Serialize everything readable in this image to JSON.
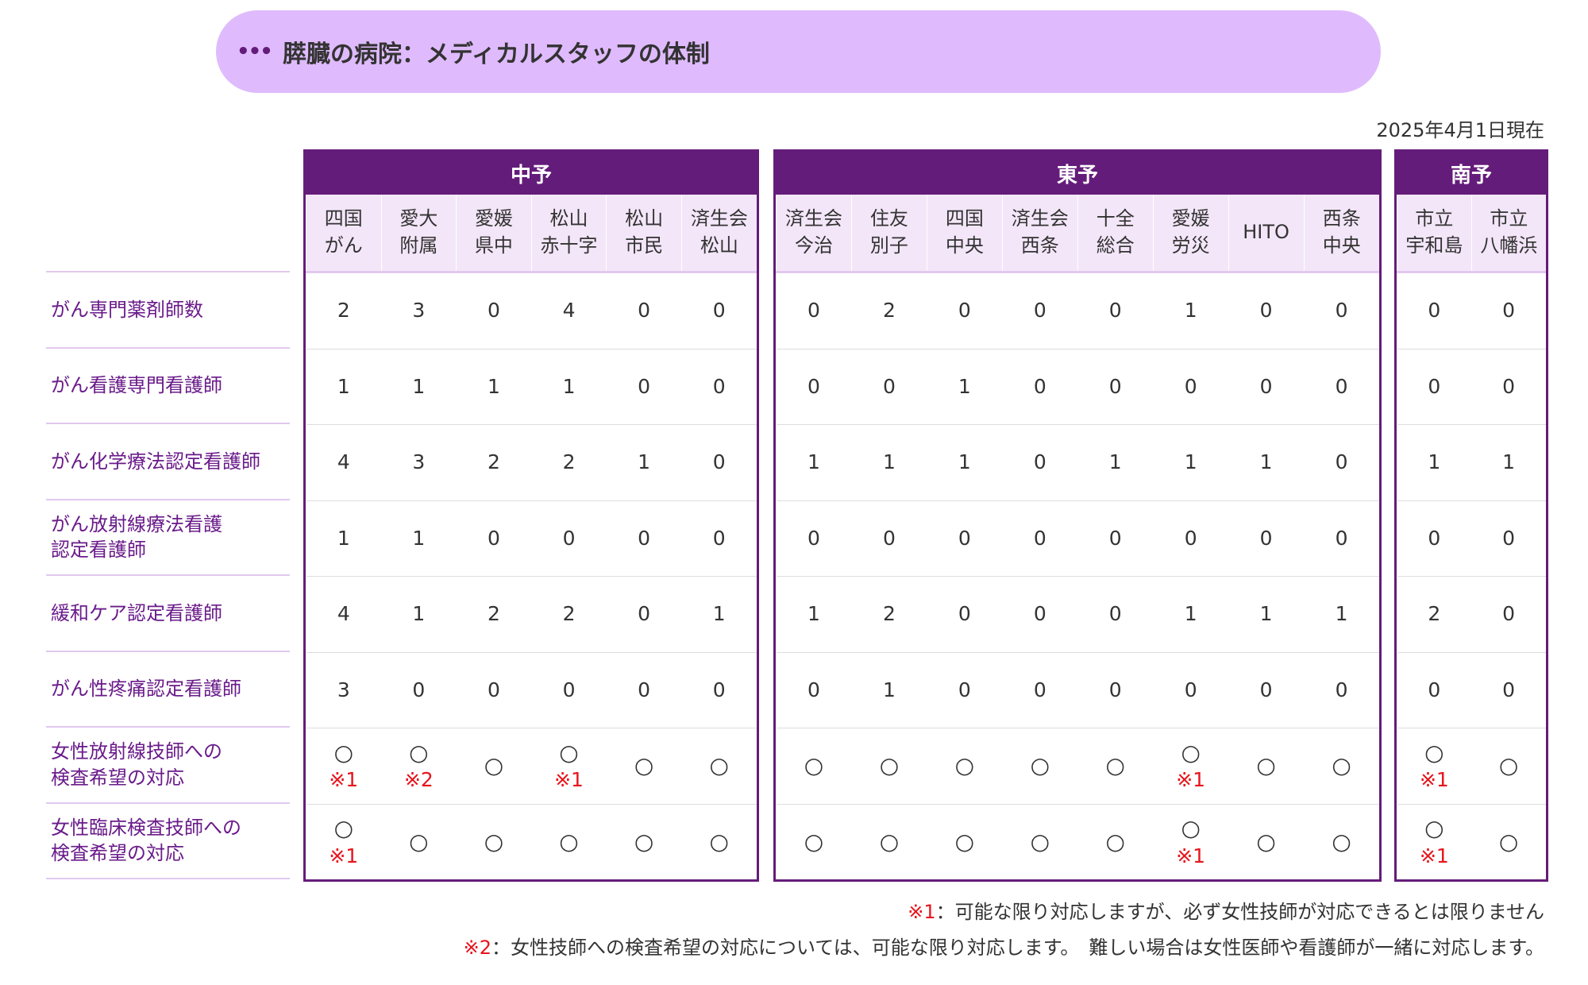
{
  "banner": {
    "icon": "ellipsis-icon",
    "title": "膵臓の病院：メディカルスタッフの体制"
  },
  "date": "2025年4月1日現在",
  "colors": {
    "header": "#641c7a",
    "subheader": "#f3e6f8",
    "banner": "#dfbbfd",
    "label": "#6a1b8a",
    "note": "#e8141c"
  },
  "groups": [
    {
      "name": "中予",
      "hospitals": [
        "四国\nがん",
        "愛大\n附属",
        "愛媛\n県中",
        "松山\n赤十字",
        "松山\n市民",
        "済生会\n松山"
      ]
    },
    {
      "name": "東予",
      "hospitals": [
        "済生会\n今治",
        "住友\n別子",
        "四国\n中央",
        "済生会\n西条",
        "十全\n総合",
        "愛媛\n労災",
        "HITO",
        "西条\n中央"
      ]
    },
    {
      "name": "南予",
      "hospitals": [
        "市立\n宇和島",
        "市立\n八幡浜"
      ]
    }
  ],
  "rows": [
    {
      "label": "がん専門薬剤師数",
      "cells": [
        "2",
        "3",
        "0",
        "4",
        "0",
        "0",
        "0",
        "2",
        "0",
        "0",
        "0",
        "1",
        "0",
        "0",
        "0",
        "0"
      ]
    },
    {
      "label": "がん看護専門看護師",
      "cells": [
        "1",
        "1",
        "1",
        "1",
        "0",
        "0",
        "0",
        "0",
        "1",
        "0",
        "0",
        "0",
        "0",
        "0",
        "0",
        "0"
      ]
    },
    {
      "label": "がん化学療法認定看護師",
      "cells": [
        "4",
        "3",
        "2",
        "2",
        "1",
        "0",
        "1",
        "1",
        "1",
        "0",
        "1",
        "1",
        "1",
        "0",
        "1",
        "1"
      ]
    },
    {
      "label": "がん放射線療法看護\n認定看護師",
      "cells": [
        "1",
        "1",
        "0",
        "0",
        "0",
        "0",
        "0",
        "0",
        "0",
        "0",
        "0",
        "0",
        "0",
        "0",
        "0",
        "0"
      ]
    },
    {
      "label": "緩和ケア認定看護師",
      "cells": [
        "4",
        "1",
        "2",
        "2",
        "0",
        "1",
        "1",
        "2",
        "0",
        "0",
        "0",
        "1",
        "1",
        "1",
        "2",
        "0"
      ]
    },
    {
      "label": "がん性疼痛認定看護師",
      "cells": [
        "3",
        "0",
        "0",
        "0",
        "0",
        "0",
        "0",
        "1",
        "0",
        "0",
        "0",
        "0",
        "0",
        "0",
        "0",
        "0"
      ]
    },
    {
      "label": "女性放射線技師への\n検査希望の対応",
      "cells": [
        "○",
        "○",
        "○",
        "○",
        "○",
        "○",
        "○",
        "○",
        "○",
        "○",
        "○",
        "○",
        "○",
        "○",
        "○",
        "○"
      ],
      "notes": [
        "※1",
        "※2",
        "",
        "※1",
        "",
        "",
        "",
        "",
        "",
        "",
        "",
        "※1",
        "",
        "",
        "※1",
        ""
      ]
    },
    {
      "label": "女性臨床検査技師への\n検査希望の対応",
      "cells": [
        "○",
        "○",
        "○",
        "○",
        "○",
        "○",
        "○",
        "○",
        "○",
        "○",
        "○",
        "○",
        "○",
        "○",
        "○",
        "○"
      ],
      "notes": [
        "※1",
        "",
        "",
        "",
        "",
        "",
        "",
        "",
        "",
        "",
        "",
        "※1",
        "",
        "",
        "※1",
        ""
      ]
    }
  ],
  "footnotes": [
    {
      "mark": "※1",
      "text": "：可能な限り対応しますが、必ず女性技師が対応できるとは限りません"
    },
    {
      "mark": "※2",
      "text": "：女性技師への検査希望の対応については、可能な限り対応します。　難しい場合は女性医師や看護師が一緒に対応します。"
    }
  ]
}
